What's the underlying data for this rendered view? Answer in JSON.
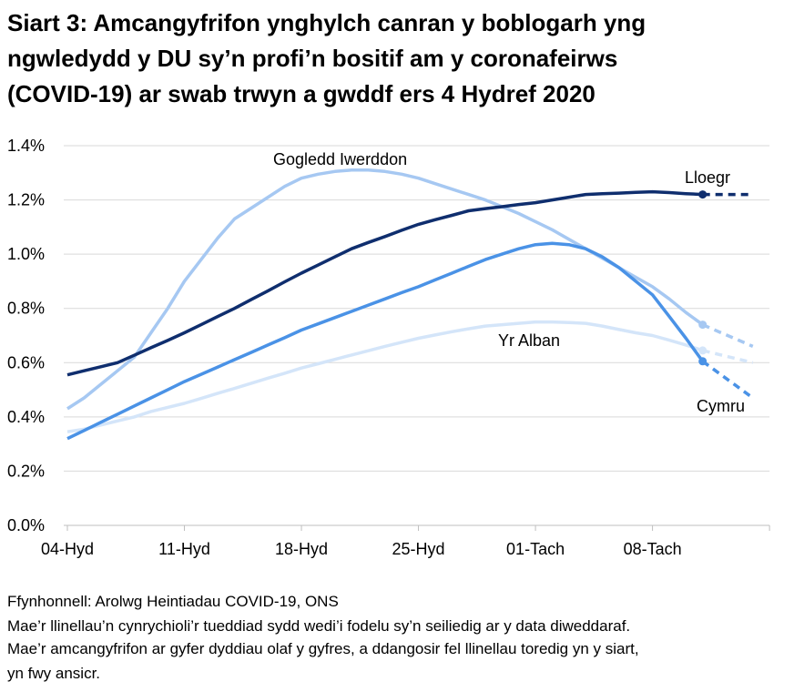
{
  "chart_data": {
    "type": "line",
    "title": [
      "Siart 3: Amcangyfrifon ynghylch canran y boblogarh yng",
      "ngwledydd y DU sy’n profi’n bositif am y coronafeirws",
      "(COVID-19) ar swab trwyn a gwddf ers 4 Hydref 2020"
    ],
    "categories": [
      "04-Hyd",
      null,
      null,
      null,
      null,
      null,
      null,
      "11-Hyd",
      null,
      null,
      null,
      null,
      null,
      null,
      "18-Hyd",
      null,
      null,
      null,
      null,
      null,
      null,
      "25-Hyd",
      null,
      null,
      null,
      null,
      null,
      null,
      "01-Tach",
      null,
      null,
      null,
      null,
      null,
      null,
      "08-Tach",
      null,
      null,
      null,
      null,
      null,
      null
    ],
    "series": [
      {
        "name": "Lloegr",
        "color": "#0f2e6e",
        "values": [
          0.555,
          0.57,
          0.585,
          0.6,
          0.627,
          0.655,
          0.682,
          0.71,
          0.74,
          0.77,
          0.8,
          0.833,
          0.865,
          0.898,
          0.93,
          0.96,
          0.99,
          1.02,
          1.043,
          1.065,
          1.088,
          1.11,
          1.127,
          1.143,
          1.16,
          1.168,
          1.175,
          1.183,
          1.19,
          1.2,
          1.21,
          1.22,
          1.223,
          1.225,
          1.228,
          1.23,
          1.227,
          1.223,
          1.22,
          1.22,
          1.22,
          1.22
        ]
      },
      {
        "name": "Gogledd Iwerddon",
        "color": "#a6c8f2",
        "values": [
          0.43,
          0.47,
          0.52,
          0.57,
          0.62,
          0.71,
          0.8,
          0.9,
          0.98,
          1.06,
          1.13,
          1.17,
          1.21,
          1.25,
          1.28,
          1.295,
          1.305,
          1.31,
          1.31,
          1.305,
          1.295,
          1.28,
          1.26,
          1.24,
          1.22,
          1.2,
          1.175,
          1.15,
          1.12,
          1.09,
          1.055,
          1.02,
          0.985,
          0.95,
          0.915,
          0.88,
          0.835,
          0.785,
          0.74,
          0.713,
          0.687,
          0.66
        ]
      },
      {
        "name": "Cymru",
        "color": "#4a92e6",
        "values": [
          0.32,
          0.35,
          0.38,
          0.41,
          0.44,
          0.47,
          0.5,
          0.53,
          0.557,
          0.584,
          0.611,
          0.638,
          0.665,
          0.692,
          0.72,
          0.743,
          0.766,
          0.789,
          0.812,
          0.835,
          0.858,
          0.88,
          0.905,
          0.93,
          0.955,
          0.98,
          1.0,
          1.02,
          1.035,
          1.04,
          1.035,
          1.02,
          0.99,
          0.95,
          0.9,
          0.85,
          0.77,
          0.69,
          0.605,
          0.56,
          0.515,
          0.47
        ]
      },
      {
        "name": "Yr Alban",
        "color": "#d4e5f9",
        "values": [
          0.345,
          0.355,
          0.37,
          0.385,
          0.4,
          0.42,
          0.435,
          0.45,
          0.468,
          0.487,
          0.505,
          0.524,
          0.543,
          0.561,
          0.58,
          0.596,
          0.612,
          0.628,
          0.644,
          0.66,
          0.675,
          0.69,
          0.702,
          0.714,
          0.725,
          0.735,
          0.74,
          0.745,
          0.75,
          0.75,
          0.748,
          0.745,
          0.735,
          0.722,
          0.71,
          0.7,
          0.683,
          0.665,
          0.645,
          0.63,
          0.615,
          0.6
        ]
      }
    ],
    "dashed_from_index": 38,
    "ylim": [
      0,
      1.4
    ],
    "yticks": [
      {
        "value": 0,
        "label": "0.0%"
      },
      {
        "value": 0.2,
        "label": "0.2%"
      },
      {
        "value": 0.4,
        "label": "0.4%"
      },
      {
        "value": 0.6,
        "label": "0.6%"
      },
      {
        "value": 0.8,
        "label": "0.8%"
      },
      {
        "value": 1.0,
        "label": "1.0%"
      },
      {
        "value": 1.2,
        "label": "1.2%"
      },
      {
        "value": 1.4,
        "label": "1.4%"
      }
    ],
    "grid": true,
    "notes": [
      "Ffynhonnell: Arolwg Heintiadau COVID-19, ONS",
      "Mae’r llinellau’n cynrychioli’r tueddiad sydd wedi’i fodelu sy’n seiliedig ar y data diweddaraf.",
      "Mae’r amcangyfrifon ar gyfer dyddiau olaf y gyfres, a ddangosir fel llinellau toredig yn y siart,",
      "yn fwy ansicr."
    ]
  }
}
